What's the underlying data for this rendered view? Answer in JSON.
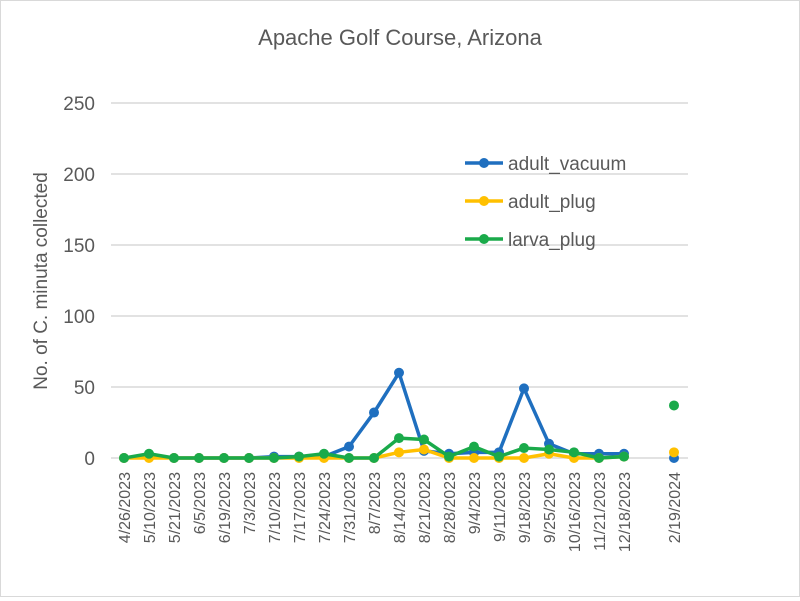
{
  "chart_data": {
    "type": "line",
    "title": "Apache Golf Course, Arizona",
    "xlabel": "",
    "ylabel": "No. of C. minuta collected",
    "ylim": [
      0,
      250
    ],
    "yticks": [
      0,
      50,
      100,
      150,
      200,
      250
    ],
    "grid": true,
    "legend_position": "top-right",
    "categories": [
      "4/26/2023",
      "5/10/2023",
      "5/21/2023",
      "6/5/2023",
      "6/19/2023",
      "7/3/2023",
      "7/10/2023",
      "7/17/2023",
      "7/24/2023",
      "7/31/2023",
      "8/7/2023",
      "8/14/2023",
      "8/21/2023",
      "8/28/2023",
      "9/4/2023",
      "9/11/2023",
      "9/18/2023",
      "9/25/2023",
      "10/16/2023",
      "11/21/2023",
      "12/18/2023",
      "",
      "2/19/2024"
    ],
    "series": [
      {
        "name": "adult_vacuum",
        "color": "#1f6fbf",
        "values": [
          0,
          2,
          0,
          0,
          0,
          0,
          1,
          1,
          1,
          8,
          32,
          60,
          5,
          3,
          4,
          4,
          49,
          10,
          3,
          3,
          3,
          null,
          0
        ]
      },
      {
        "name": "adult_plug",
        "color": "#ffc000",
        "values": [
          0,
          0,
          0,
          0,
          0,
          0,
          0,
          0,
          0,
          0,
          0,
          4,
          6,
          0,
          0,
          0,
          0,
          3,
          0,
          0,
          1,
          null,
          4
        ]
      },
      {
        "name": "larva_plug",
        "color": "#1aaa4a",
        "values": [
          0,
          3,
          0,
          0,
          0,
          0,
          0,
          1,
          3,
          0,
          0,
          14,
          13,
          1,
          8,
          1,
          7,
          6,
          4,
          0,
          1,
          null,
          37
        ]
      }
    ]
  }
}
